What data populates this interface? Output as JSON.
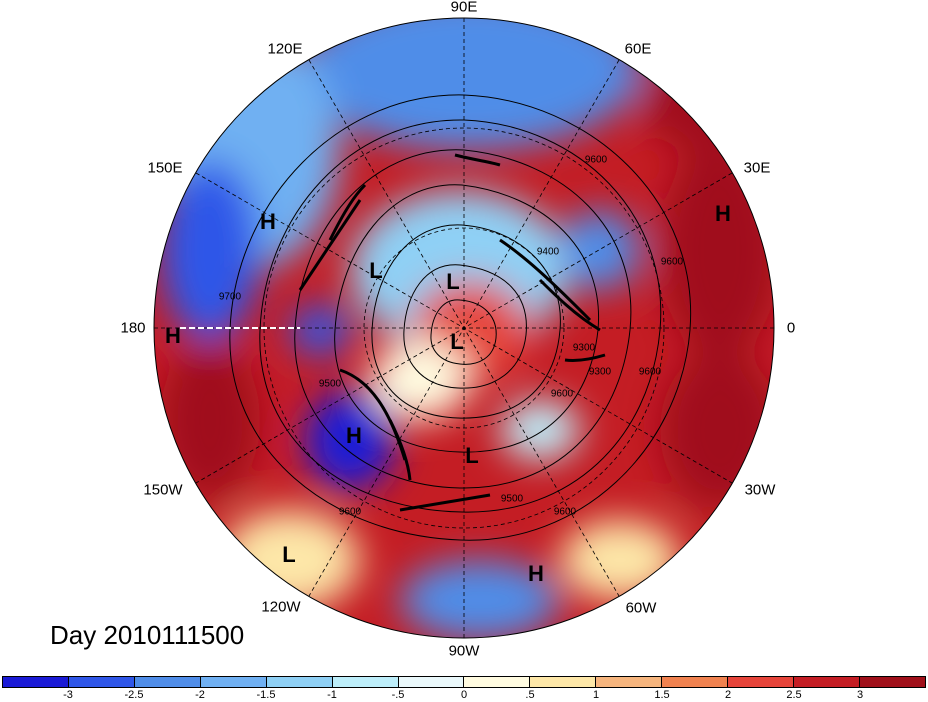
{
  "title": "Day 2010111500",
  "longitude_labels": {
    "n90e": "90E",
    "n60e": "60E",
    "n30e": "30E",
    "n0": "0",
    "n30w": "30W",
    "n60w": "60W",
    "n90w": "90W",
    "n120w": "120W",
    "n150w": "150W",
    "n180": "180",
    "n150e": "150E",
    "n120e": "120E"
  },
  "pressure_centers": [
    {
      "label": "H",
      "name": "h-north-pacific-west"
    },
    {
      "label": "H",
      "name": "h-europe"
    },
    {
      "label": "H",
      "name": "h-dateline"
    },
    {
      "label": "H",
      "name": "h-northeast-pacific"
    },
    {
      "label": "H",
      "name": "h-south-america"
    },
    {
      "label": "L",
      "name": "l-siberia"
    },
    {
      "label": "L",
      "name": "l-kara"
    },
    {
      "label": "L",
      "name": "l-pole"
    },
    {
      "label": "L",
      "name": "l-hudson"
    },
    {
      "label": "L",
      "name": "l-east-pacific"
    }
  ],
  "contour_labels": [
    "9700",
    "9500",
    "9600",
    "9600",
    "9400",
    "9600",
    "9300",
    "9600",
    "9600",
    "9600",
    "9500",
    "9300"
  ],
  "colorbar": {
    "colors": [
      "#1a1ad6",
      "#2f56e8",
      "#4f8de8",
      "#70b0f2",
      "#8fd0f5",
      "#bdeefa",
      "#eaf8fb",
      "#fffbe0",
      "#fde7a8",
      "#f6b57e",
      "#f08250",
      "#e6443a",
      "#c41d24",
      "#a0101a"
    ],
    "ticks": [
      "-3",
      "-2.5",
      "-2",
      "-1.5",
      "-1",
      "-.5",
      "0",
      ".5",
      "1",
      "1.5",
      "2",
      "2.5",
      "3"
    ]
  }
}
